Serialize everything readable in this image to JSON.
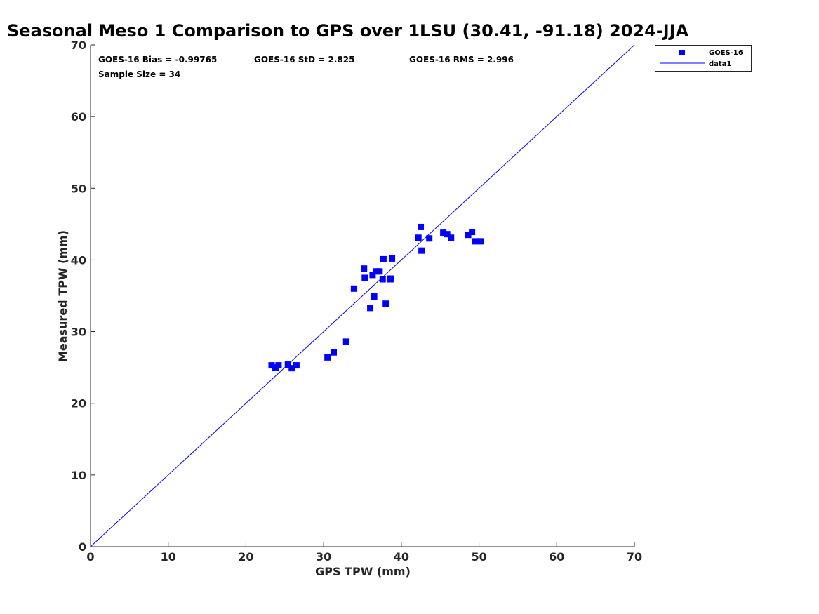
{
  "chart_data": {
    "type": "scatter",
    "title": "Seasonal Meso 1 Comparison to GPS over 1LSU (30.41, -91.18) 2024-JJA",
    "xlabel": "GPS TPW (mm)",
    "ylabel": "Measured TPW (mm)",
    "xlim": [
      0,
      70
    ],
    "ylim": [
      0,
      70
    ],
    "xticks": [
      0,
      10,
      20,
      30,
      40,
      50,
      60,
      70
    ],
    "yticks": [
      0,
      10,
      20,
      30,
      40,
      50,
      60,
      70
    ],
    "grid": false,
    "legend_position": "top-right",
    "colors": {
      "series": "#0000ff",
      "axis": "#262626"
    },
    "stats": {
      "bias": "GOES-16 Bias = -0.99765",
      "std": "GOES-16 StD = 2.825",
      "rms": "GOES-16 RMS = 2.996",
      "sample": "Sample Size = 34"
    },
    "series": [
      {
        "name": "GOES-16",
        "marker": "square",
        "points": [
          [
            23.3,
            25.3
          ],
          [
            23.8,
            25.0
          ],
          [
            24.2,
            25.3
          ],
          [
            25.4,
            25.4
          ],
          [
            25.9,
            24.9
          ],
          [
            26.5,
            25.3
          ],
          [
            30.5,
            26.4
          ],
          [
            31.3,
            27.1
          ],
          [
            32.9,
            28.6
          ],
          [
            33.9,
            36.0
          ],
          [
            35.2,
            38.8
          ],
          [
            35.3,
            37.5
          ],
          [
            36.0,
            33.3
          ],
          [
            36.3,
            37.9
          ],
          [
            36.5,
            34.9
          ],
          [
            36.8,
            38.4
          ],
          [
            37.2,
            38.4
          ],
          [
            37.6,
            37.3
          ],
          [
            37.7,
            40.1
          ],
          [
            38.0,
            33.9
          ],
          [
            38.6,
            37.3
          ],
          [
            38.6,
            37.4
          ],
          [
            38.8,
            40.2
          ],
          [
            42.2,
            43.1
          ],
          [
            42.5,
            44.6
          ],
          [
            42.6,
            41.3
          ],
          [
            43.6,
            43.0
          ],
          [
            45.4,
            43.8
          ],
          [
            45.9,
            43.6
          ],
          [
            46.4,
            43.1
          ],
          [
            48.6,
            43.5
          ],
          [
            49.1,
            43.9
          ],
          [
            49.5,
            42.6
          ],
          [
            50.2,
            42.6
          ]
        ]
      },
      {
        "name": "data1",
        "type": "line",
        "points": [
          [
            0,
            0
          ],
          [
            70,
            70
          ]
        ]
      }
    ]
  }
}
